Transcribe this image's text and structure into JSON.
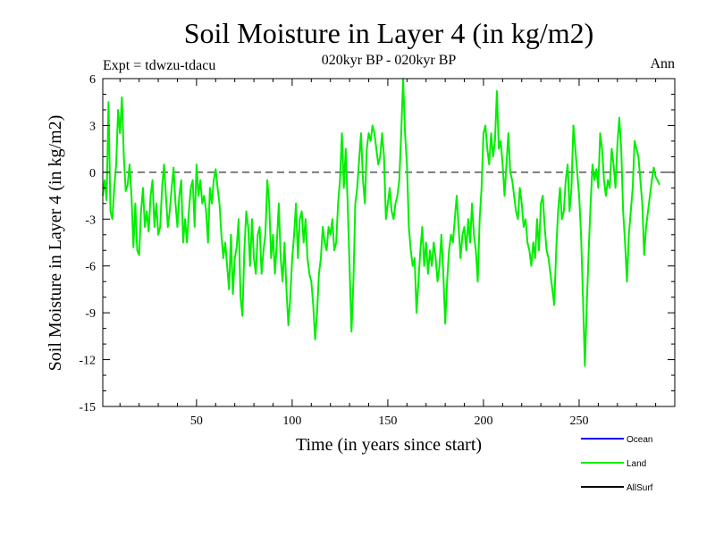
{
  "chart_data": {
    "type": "line",
    "title": "Soil Moisture in Layer 4 (in kg/m2)",
    "subtitle": "020kyr BP - 020kyr BP",
    "expt_label": "Expt = tdwzu-tdacu",
    "season_label": "Ann",
    "xlabel": "Time (in years since start)",
    "ylabel": "Soil Moisture in Layer 4 (in kg/m2)",
    "xlim": [
      1,
      300
    ],
    "ylim": [
      -15,
      6
    ],
    "x_ticks": [
      50,
      100,
      150,
      200,
      250
    ],
    "y_ticks": [
      6,
      3,
      0,
      -3,
      -6,
      -9,
      -12,
      -15
    ],
    "zero_line": true,
    "legend_position": "bottom-right",
    "legend": [
      {
        "name": "Ocean",
        "color": "#0000ff"
      },
      {
        "name": "Land",
        "color": "#00ee00"
      },
      {
        "name": "AllSurf",
        "color": "#000000"
      }
    ],
    "series": [
      {
        "name": "Land",
        "color": "#00ee00",
        "x_start": 1,
        "x_step": 1,
        "values": [
          -1.5,
          -0.5,
          -1.8,
          4.5,
          -2.5,
          -3.0,
          -1.0,
          0.5,
          4.0,
          2.5,
          4.8,
          1.0,
          -1.2,
          -0.8,
          0.5,
          -1.5,
          -4.8,
          -2.0,
          -5.0,
          -5.3,
          -2.5,
          -1.0,
          -3.5,
          -2.5,
          -3.8,
          -1.5,
          -0.5,
          -3.5,
          -2.0,
          -4.0,
          -3.5,
          -1.0,
          0.5,
          -1.5,
          -3.5,
          -2.5,
          -1.0,
          0.3,
          -2.0,
          -3.5,
          -1.5,
          -0.5,
          -4.5,
          -3.0,
          -4.5,
          -2.5,
          -1.0,
          -0.5,
          -3.5,
          0.5,
          -1.5,
          -0.5,
          -2.0,
          -1.5,
          -2.5,
          -4.5,
          -1.0,
          -2.0,
          -0.5,
          0.2,
          -1.0,
          -2.0,
          -4.0,
          -5.5,
          -4.5,
          -6.0,
          -7.5,
          -4.0,
          -7.8,
          -5.5,
          -4.8,
          -3.0,
          -8.0,
          -9.2,
          -5.0,
          -2.5,
          -3.5,
          -6.0,
          -3.0,
          -5.5,
          -6.5,
          -4.0,
          -3.5,
          -6.5,
          -5.0,
          -4.0,
          -0.5,
          -2.0,
          -5.5,
          -4.0,
          -6.5,
          -4.5,
          -2.0,
          -5.5,
          -7.0,
          -4.5,
          -7.5,
          -9.8,
          -8.0,
          -5.5,
          -4.0,
          -2.0,
          -5.5,
          -3.0,
          -2.5,
          -4.5,
          -3.0,
          -5.5,
          -6.5,
          -7.0,
          -8.5,
          -10.7,
          -9.0,
          -6.5,
          -5.5,
          -3.5,
          -4.5,
          -5.0,
          -3.5,
          -4.0,
          -3.0,
          -5.0,
          -4.5,
          -2.0,
          -0.5,
          2.5,
          -1.0,
          1.5,
          -2.0,
          -6.0,
          -10.2,
          -7.0,
          -2.0,
          -1.0,
          0.8,
          2.5,
          -0.5,
          -2.0,
          1.5,
          2.5,
          2.0,
          3.0,
          2.5,
          1.5,
          0.5,
          1.0,
          2.5,
          1.0,
          -3.0,
          -2.0,
          -1.0,
          -2.5,
          -3.0,
          -2.0,
          -1.5,
          -0.5,
          2.5,
          6.0,
          2.5,
          0.5,
          -3.5,
          -5.0,
          -6.0,
          -5.5,
          -9.0,
          -7.0,
          -5.0,
          -3.5,
          -6.0,
          -4.5,
          -6.5,
          -5.0,
          -6.0,
          -4.5,
          -5.5,
          -7.0,
          -6.0,
          -4.0,
          -6.5,
          -9.7,
          -7.0,
          -5.0,
          -4.0,
          -4.5,
          -3.0,
          -1.5,
          -3.5,
          -5.5,
          -4.0,
          -3.5,
          -5.0,
          -3.0,
          -4.5,
          -2.0,
          -4.0,
          -5.0,
          -7.0,
          -3.0,
          -1.0,
          2.5,
          3.0,
          1.5,
          0.5,
          2.5,
          1.0,
          2.0,
          5.2,
          1.5,
          2.0,
          0.5,
          -1.5,
          0.5,
          2.5,
          0.0,
          -0.5,
          -1.5,
          -2.5,
          -3.0,
          -1.0,
          -2.0,
          -3.5,
          -3.0,
          -4.5,
          -5.0,
          -6.0,
          -4.5,
          -5.5,
          -3.0,
          -5.0,
          -2.0,
          -1.5,
          -3.5,
          -5.0,
          -5.5,
          -6.5,
          -7.5,
          -8.5,
          -5.0,
          -2.5,
          -1.0,
          -3.0,
          -2.5,
          -0.5,
          0.5,
          -2.5,
          -1.0,
          3.0,
          1.5,
          0.0,
          -1.5,
          -4.0,
          -8.0,
          -12.4,
          -8.5,
          -5.0,
          -2.0,
          0.5,
          -0.5,
          0.2,
          -1.0,
          2.5,
          1.5,
          -0.5,
          -1.5,
          -0.5,
          -1.0,
          1.5,
          0.5,
          -1.0,
          1.8,
          3.5,
          1.5,
          -2.5,
          -4.5,
          -7.0,
          -4.0,
          -2.5,
          -1.0,
          2.0,
          1.5,
          1.0,
          -0.5,
          -2.0,
          -5.3,
          -3.5,
          -2.5,
          -1.5,
          -0.5,
          0.3,
          -0.3,
          -0.5,
          -0.8
        ]
      }
    ]
  }
}
